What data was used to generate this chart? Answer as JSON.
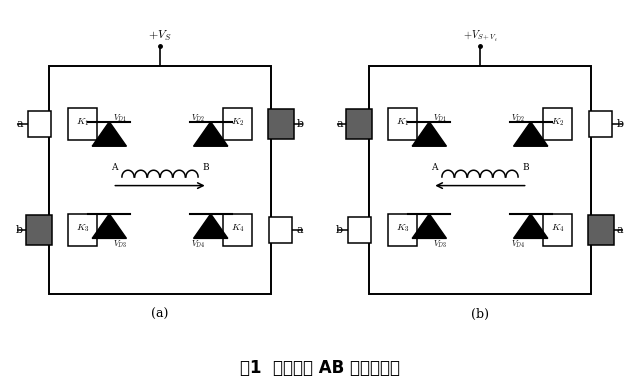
{
  "title": "图1  电机绕组 AB 的电流方向",
  "title_fontsize": 12,
  "label_a": "(a)",
  "label_b": "(b)",
  "bg_color": "#ffffff",
  "dark_gray": "#606060",
  "vcc_a": "+V_S",
  "vcc_b": "+V_{S+V_t}"
}
